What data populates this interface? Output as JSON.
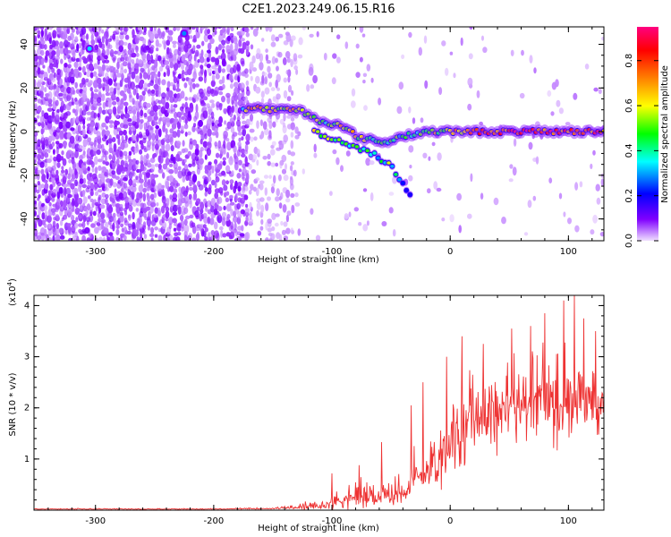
{
  "figure": {
    "title": "C2E1.2023.249.06.15.R16"
  },
  "chart_data": [
    {
      "type": "heatmap",
      "xlabel": "Height of straight line (km)",
      "ylabel": "Frequency (Hz)",
      "xlim": [
        -352,
        130
      ],
      "ylim": [
        -50,
        48
      ],
      "xticks": [
        -300,
        -200,
        -100,
        0,
        100
      ],
      "yticks": [
        -40,
        -20,
        0,
        20,
        40
      ],
      "colorbar": {
        "label": "Normalized spectral amplitude",
        "range": [
          0.0,
          0.95
        ],
        "ticks": [
          "0.0",
          "0.2",
          "0.4",
          "0.6",
          "0.8"
        ],
        "colors": [
          "#f0e0ff",
          "#8000ff",
          "#0000ff",
          "#00ffff",
          "#00ff00",
          "#ffff00",
          "#ff8000",
          "#ff0000",
          "#ff0080"
        ]
      },
      "ridge": [
        {
          "x": -175,
          "y": 10,
          "v": 0.5
        },
        {
          "x": -165,
          "y": 11,
          "v": 0.75
        },
        {
          "x": -150,
          "y": 10,
          "v": 0.6
        },
        {
          "x": -128,
          "y": 10,
          "v": 0.65
        },
        {
          "x": -110,
          "y": 5,
          "v": 0.5
        },
        {
          "x": -95,
          "y": 3,
          "v": 0.6
        },
        {
          "x": -75,
          "y": -3,
          "v": 0.6
        },
        {
          "x": -55,
          "y": -5,
          "v": 0.45
        },
        {
          "x": -40,
          "y": -2,
          "v": 0.45
        },
        {
          "x": -20,
          "y": 0,
          "v": 0.55
        },
        {
          "x": 0,
          "y": 0,
          "v": 0.65
        },
        {
          "x": 30,
          "y": 0,
          "v": 0.8
        },
        {
          "x": 60,
          "y": 0,
          "v": 0.85
        },
        {
          "x": 90,
          "y": 0,
          "v": 0.85
        },
        {
          "x": 130,
          "y": 0,
          "v": 0.8
        }
      ],
      "branch": [
        {
          "x": -115,
          "y": 0,
          "v": 0.6
        },
        {
          "x": -90,
          "y": -5,
          "v": 0.5
        },
        {
          "x": -65,
          "y": -10,
          "v": 0.4
        },
        {
          "x": -50,
          "y": -16,
          "v": 0.5
        },
        {
          "x": -42,
          "y": -22,
          "v": 0.2
        },
        {
          "x": -32,
          "y": -30,
          "v": 0.12
        }
      ],
      "highlights": [
        {
          "x": -305,
          "y": 38,
          "v": 0.35
        },
        {
          "x": -225,
          "y": 45,
          "v": 0.3
        }
      ]
    },
    {
      "type": "line",
      "xlabel": "Height of straight line (km)",
      "ylabel": "SNR (10 * v/v)",
      "y_multiplier": "(x10",
      "y_multiplier_exp": "4",
      "xlim": [
        -352,
        130
      ],
      "ylim": [
        0,
        4.2
      ],
      "xticks": [
        -300,
        -200,
        -100,
        0,
        100
      ],
      "yticks": [
        1,
        2,
        3,
        4
      ],
      "series": [
        {
          "color": "#ee3333",
          "envelope": [
            {
              "x": -352,
              "base": 0.02,
              "amp": 0.02
            },
            {
              "x": -200,
              "base": 0.02,
              "amp": 0.02
            },
            {
              "x": -150,
              "base": 0.03,
              "amp": 0.03
            },
            {
              "x": -110,
              "base": 0.06,
              "amp": 0.2
            },
            {
              "x": -90,
              "base": 0.18,
              "amp": 0.5
            },
            {
              "x": -70,
              "base": 0.22,
              "amp": 0.7
            },
            {
              "x": -50,
              "base": 0.22,
              "amp": 0.6
            },
            {
              "x": -35,
              "base": 0.4,
              "amp": 0.9
            },
            {
              "x": -15,
              "base": 0.8,
              "amp": 1.4
            },
            {
              "x": 0,
              "base": 1.2,
              "amp": 1.8
            },
            {
              "x": 20,
              "base": 1.7,
              "amp": 1.8
            },
            {
              "x": 50,
              "base": 1.9,
              "amp": 2.0
            },
            {
              "x": 80,
              "base": 2.0,
              "amp": 2.0
            },
            {
              "x": 100,
              "base": 2.0,
              "amp": 2.1
            },
            {
              "x": 130,
              "base": 2.0,
              "amp": 1.8
            }
          ],
          "peaks": [
            {
              "x": -100,
              "y": 0.72
            },
            {
              "x": -77,
              "y": 0.88
            },
            {
              "x": -58,
              "y": 1.33
            },
            {
              "x": -33,
              "y": 2.05
            },
            {
              "x": -23,
              "y": 2.5
            },
            {
              "x": -3,
              "y": 3.0
            },
            {
              "x": 10,
              "y": 3.4
            },
            {
              "x": 28,
              "y": 3.25
            },
            {
              "x": 52,
              "y": 3.55
            },
            {
              "x": 68,
              "y": 3.6
            },
            {
              "x": 80,
              "y": 3.85
            },
            {
              "x": 96,
              "y": 4.1
            },
            {
              "x": 105,
              "y": 4.2
            },
            {
              "x": 113,
              "y": 3.75
            },
            {
              "x": 123,
              "y": 3.5
            }
          ]
        }
      ]
    }
  ]
}
